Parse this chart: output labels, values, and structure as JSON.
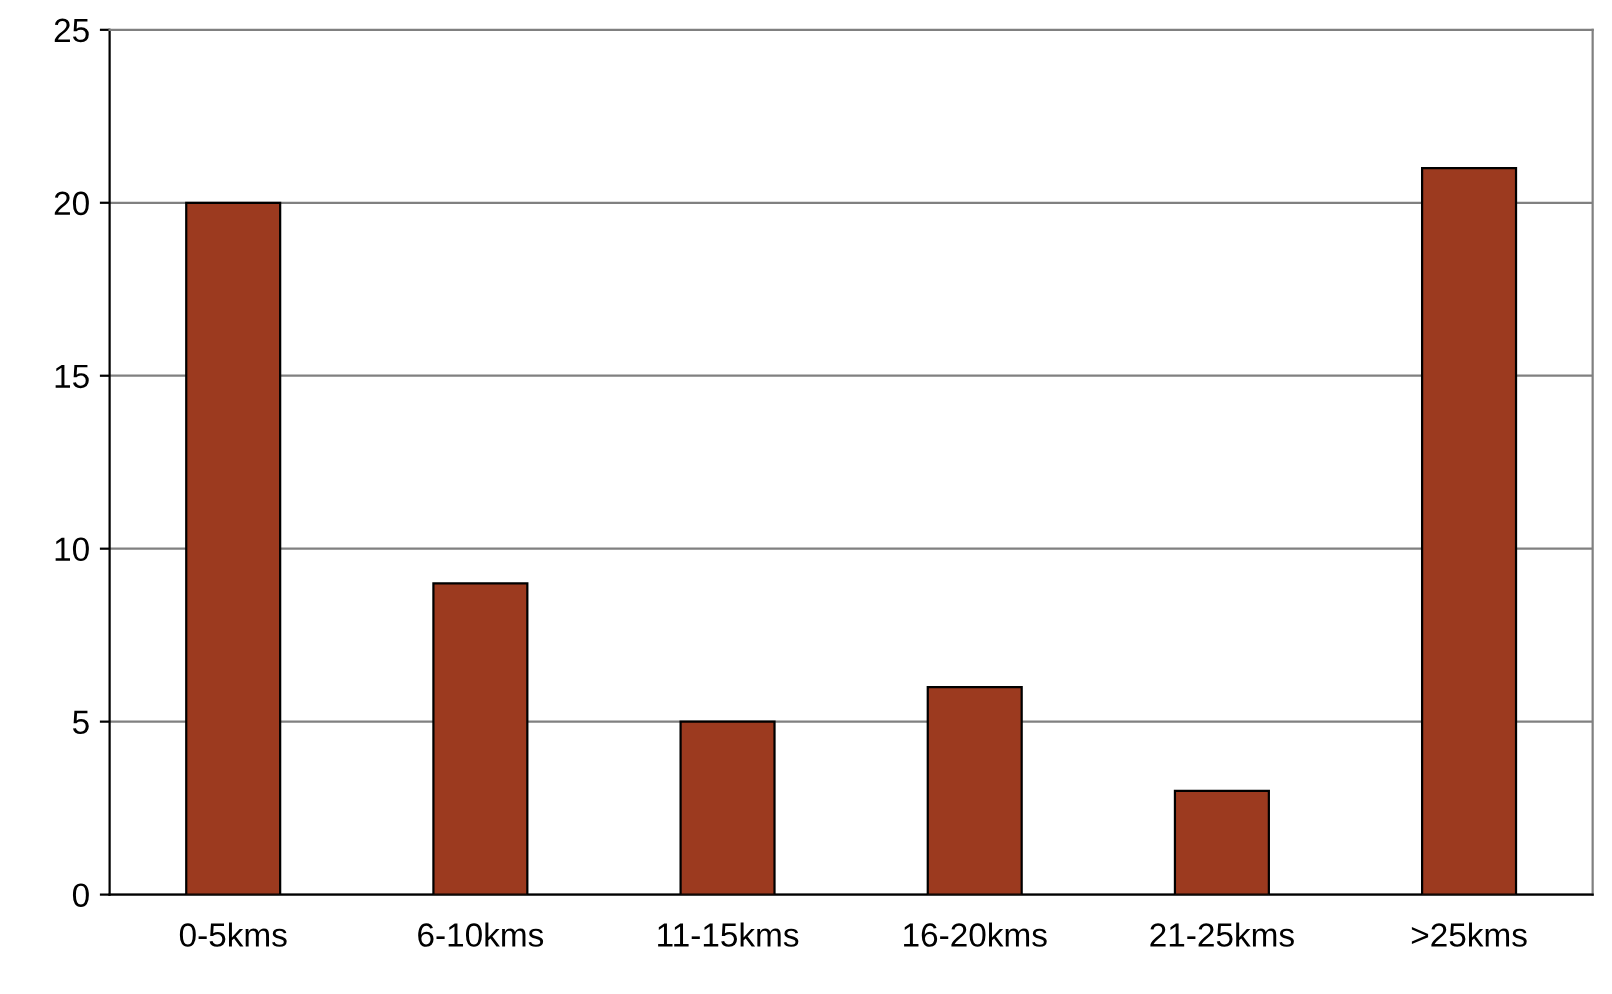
{
  "chart_data": {
    "type": "bar",
    "categories": [
      "0-5kms",
      "6-10kms",
      "11-15kms",
      "16-20kms",
      "21-25kms",
      ">25kms"
    ],
    "values": [
      20,
      9,
      5,
      6,
      3,
      21
    ],
    "color": "#9c3a1f",
    "ylim": [
      0,
      25
    ],
    "yticks": [
      0,
      5,
      10,
      15,
      20,
      25
    ],
    "grid": "y",
    "legend": false
  }
}
